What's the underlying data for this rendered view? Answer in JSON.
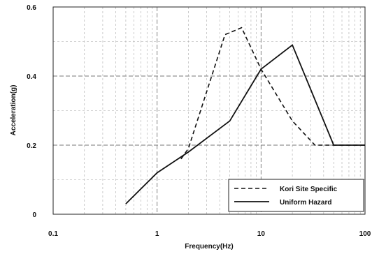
{
  "chart_data": {
    "type": "line",
    "title": "",
    "xlabel": "Frequency(Hz)",
    "ylabel": "Acceleration(g)",
    "x_scale": "log",
    "xlim": [
      0.1,
      100
    ],
    "ylim": [
      0,
      0.6
    ],
    "x_ticks": [
      0.1,
      1,
      10,
      100
    ],
    "x_tick_labels": [
      "0.1",
      "1",
      "10",
      "100"
    ],
    "y_ticks": [
      0,
      0.2,
      0.4,
      0.6
    ],
    "y_tick_labels": [
      "0",
      "0.2",
      "0.4",
      "0.6"
    ],
    "grid": true,
    "legend_position": "bottom-right",
    "series": [
      {
        "name": "Kori Site Specific",
        "style": "dashed",
        "color": "#111111",
        "x": [
          1.7,
          2,
          4.5,
          6.5,
          10,
          20,
          33,
          50,
          100
        ],
        "y": [
          0.16,
          0.19,
          0.52,
          0.54,
          0.42,
          0.27,
          0.2,
          0.2,
          0.2
        ]
      },
      {
        "name": "Uniform Hazard",
        "style": "solid",
        "color": "#111111",
        "x": [
          0.5,
          1,
          2,
          5,
          10,
          20,
          50,
          100
        ],
        "y": [
          0.03,
          0.12,
          0.18,
          0.27,
          0.42,
          0.49,
          0.2,
          0.2
        ]
      }
    ]
  }
}
